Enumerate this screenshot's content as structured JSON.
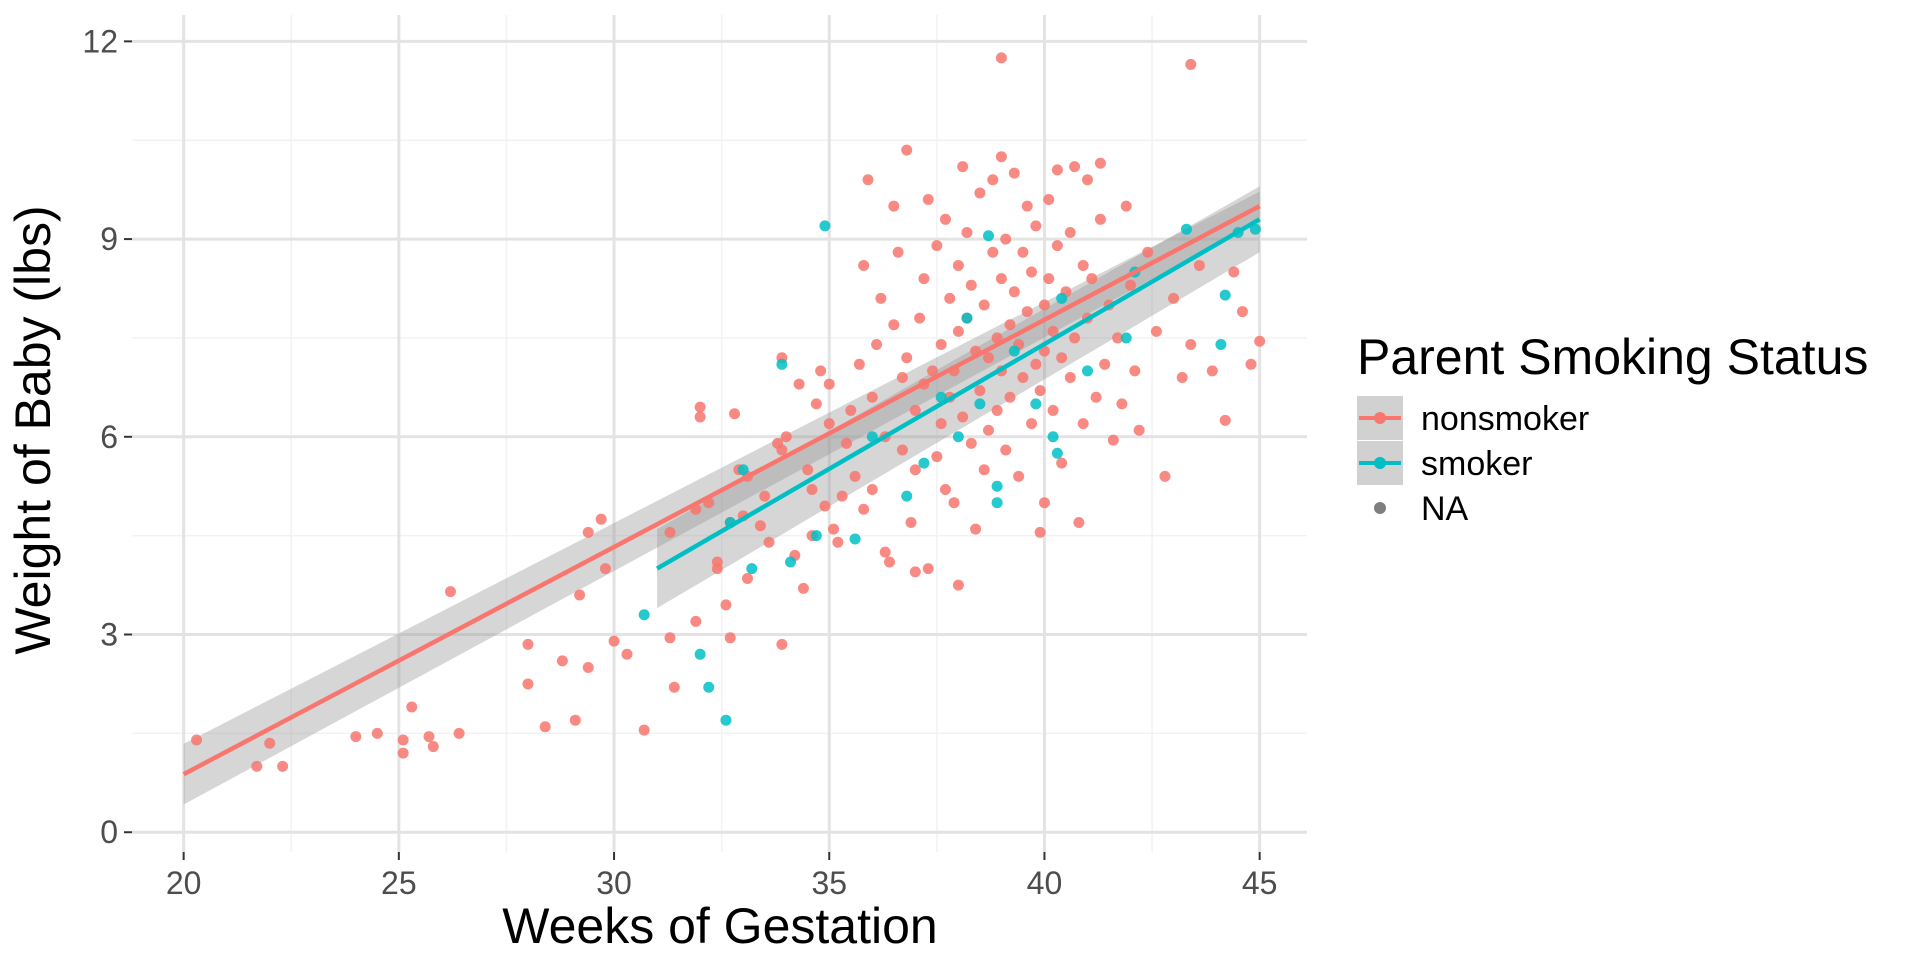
{
  "chart_data": {
    "type": "scatter",
    "xlabel": "Weeks of Gestation",
    "ylabel": "Weight of Baby (lbs)",
    "xlim": [
      18.8,
      46.1
    ],
    "ylim": [
      -0.3,
      12.4
    ],
    "x_ticks": [
      20,
      25,
      30,
      35,
      40,
      45
    ],
    "y_ticks": [
      0,
      3,
      6,
      9,
      12
    ],
    "grid": true,
    "legend": {
      "title": "Parent Smoking Status",
      "position": "right",
      "entries": [
        "nonsmoker",
        "smoker",
        "NA"
      ]
    },
    "colors": {
      "nonsmoker": "#F8766D",
      "smoker": "#00BFC4",
      "NA": "#7F7F7F",
      "ribbon": "#999999"
    },
    "trend_lines": [
      {
        "name": "nonsmoker",
        "x": [
          20,
          45
        ],
        "y": [
          0.88,
          9.5
        ],
        "band_low": [
          0.42,
          9.28
        ],
        "band_high": [
          1.34,
          9.72
        ]
      },
      {
        "name": "smoker",
        "x": [
          31,
          45
        ],
        "y": [
          4.0,
          9.3
        ],
        "band_low": [
          3.4,
          8.8
        ],
        "band_high": [
          4.6,
          9.8
        ]
      }
    ],
    "series": [
      {
        "name": "nonsmoker",
        "points": [
          [
            20.3,
            1.4
          ],
          [
            21.7,
            1.0
          ],
          [
            22.3,
            1.0
          ],
          [
            22.0,
            1.35
          ],
          [
            24.0,
            1.45
          ],
          [
            24.5,
            1.5
          ],
          [
            25.1,
            1.2
          ],
          [
            25.1,
            1.4
          ],
          [
            25.3,
            1.9
          ],
          [
            25.7,
            1.45
          ],
          [
            25.8,
            1.3
          ],
          [
            26.2,
            3.65
          ],
          [
            26.4,
            1.5
          ],
          [
            28.0,
            2.25
          ],
          [
            28.0,
            2.85
          ],
          [
            28.4,
            1.6
          ],
          [
            28.8,
            2.6
          ],
          [
            29.1,
            1.7
          ],
          [
            29.2,
            3.6
          ],
          [
            29.4,
            4.55
          ],
          [
            29.4,
            2.5
          ],
          [
            29.7,
            4.75
          ],
          [
            29.8,
            4.0
          ],
          [
            30.0,
            2.9
          ],
          [
            30.3,
            2.7
          ],
          [
            30.7,
            1.55
          ],
          [
            31.3,
            4.55
          ],
          [
            31.3,
            2.95
          ],
          [
            31.4,
            2.2
          ],
          [
            31.9,
            3.2
          ],
          [
            31.9,
            4.9
          ],
          [
            32.0,
            6.3
          ],
          [
            32.0,
            6.45
          ],
          [
            32.2,
            5.0
          ],
          [
            32.4,
            4.0
          ],
          [
            32.4,
            4.1
          ],
          [
            32.6,
            3.45
          ],
          [
            32.7,
            2.95
          ],
          [
            32.7,
            4.7
          ],
          [
            32.8,
            6.35
          ],
          [
            32.9,
            5.5
          ],
          [
            33.0,
            4.8
          ],
          [
            33.1,
            5.4
          ],
          [
            33.1,
            3.85
          ],
          [
            33.4,
            4.65
          ],
          [
            33.5,
            5.1
          ],
          [
            33.6,
            4.4
          ],
          [
            33.8,
            5.9
          ],
          [
            33.9,
            7.2
          ],
          [
            33.9,
            2.85
          ],
          [
            33.9,
            5.8
          ],
          [
            34.0,
            6.0
          ],
          [
            34.2,
            4.2
          ],
          [
            34.3,
            6.8
          ],
          [
            34.4,
            3.7
          ],
          [
            34.5,
            5.5
          ],
          [
            34.6,
            5.2
          ],
          [
            34.6,
            4.5
          ],
          [
            34.7,
            6.5
          ],
          [
            34.8,
            7.0
          ],
          [
            34.9,
            4.95
          ],
          [
            35.0,
            6.2
          ],
          [
            35.0,
            6.8
          ],
          [
            35.1,
            4.6
          ],
          [
            35.2,
            4.4
          ],
          [
            35.3,
            5.1
          ],
          [
            35.4,
            5.9
          ],
          [
            35.5,
            6.4
          ],
          [
            35.6,
            5.4
          ],
          [
            35.7,
            7.1
          ],
          [
            35.8,
            4.9
          ],
          [
            35.8,
            8.6
          ],
          [
            35.9,
            9.9
          ],
          [
            36.0,
            6.6
          ],
          [
            36.0,
            5.2
          ],
          [
            36.1,
            7.4
          ],
          [
            36.2,
            8.1
          ],
          [
            36.3,
            4.25
          ],
          [
            36.3,
            6.0
          ],
          [
            36.4,
            4.1
          ],
          [
            36.5,
            7.7
          ],
          [
            36.5,
            9.5
          ],
          [
            36.6,
            8.8
          ],
          [
            36.7,
            5.8
          ],
          [
            36.7,
            6.9
          ],
          [
            36.8,
            10.35
          ],
          [
            36.8,
            7.2
          ],
          [
            36.9,
            4.7
          ],
          [
            37.0,
            3.95
          ],
          [
            37.0,
            5.5
          ],
          [
            37.0,
            6.4
          ],
          [
            37.1,
            7.8
          ],
          [
            37.2,
            8.4
          ],
          [
            37.2,
            6.8
          ],
          [
            37.3,
            9.6
          ],
          [
            37.3,
            4.0
          ],
          [
            37.4,
            7.0
          ],
          [
            37.5,
            5.7
          ],
          [
            37.5,
            8.9
          ],
          [
            37.6,
            6.2
          ],
          [
            37.6,
            7.4
          ],
          [
            37.7,
            5.2
          ],
          [
            37.7,
            9.3
          ],
          [
            37.8,
            6.6
          ],
          [
            37.8,
            8.1
          ],
          [
            37.9,
            7.0
          ],
          [
            37.9,
            5.0
          ],
          [
            38.0,
            3.75
          ],
          [
            38.0,
            8.6
          ],
          [
            38.0,
            7.6
          ],
          [
            38.1,
            10.1
          ],
          [
            38.1,
            6.3
          ],
          [
            38.2,
            9.1
          ],
          [
            38.2,
            7.8
          ],
          [
            38.3,
            5.9
          ],
          [
            38.3,
            8.3
          ],
          [
            38.4,
            4.6
          ],
          [
            38.4,
            7.3
          ],
          [
            38.5,
            6.7
          ],
          [
            38.5,
            9.7
          ],
          [
            38.6,
            8.0
          ],
          [
            38.6,
            5.5
          ],
          [
            38.7,
            7.2
          ],
          [
            38.7,
            6.1
          ],
          [
            38.8,
            8.8
          ],
          [
            38.8,
            9.9
          ],
          [
            38.9,
            7.5
          ],
          [
            38.9,
            6.4
          ],
          [
            39.0,
            11.75
          ],
          [
            39.0,
            10.25
          ],
          [
            39.0,
            8.4
          ],
          [
            39.0,
            7.0
          ],
          [
            39.1,
            5.8
          ],
          [
            39.1,
            9.0
          ],
          [
            39.2,
            7.7
          ],
          [
            39.2,
            6.6
          ],
          [
            39.3,
            8.2
          ],
          [
            39.3,
            10.0
          ],
          [
            39.4,
            7.4
          ],
          [
            39.4,
            5.4
          ],
          [
            39.5,
            8.8
          ],
          [
            39.5,
            6.9
          ],
          [
            39.6,
            9.5
          ],
          [
            39.6,
            7.9
          ],
          [
            39.7,
            6.2
          ],
          [
            39.7,
            8.5
          ],
          [
            39.8,
            7.1
          ],
          [
            39.8,
            9.2
          ],
          [
            39.9,
            4.55
          ],
          [
            39.9,
            6.7
          ],
          [
            40.0,
            8.0
          ],
          [
            40.0,
            7.3
          ],
          [
            40.0,
            5.0
          ],
          [
            40.1,
            9.6
          ],
          [
            40.1,
            8.4
          ],
          [
            40.2,
            7.6
          ],
          [
            40.2,
            6.4
          ],
          [
            40.3,
            10.05
          ],
          [
            40.3,
            8.9
          ],
          [
            40.4,
            7.2
          ],
          [
            40.4,
            5.6
          ],
          [
            40.5,
            8.2
          ],
          [
            40.6,
            9.1
          ],
          [
            40.6,
            6.9
          ],
          [
            40.7,
            10.1
          ],
          [
            40.7,
            7.5
          ],
          [
            40.8,
            4.7
          ],
          [
            40.9,
            8.6
          ],
          [
            40.9,
            6.2
          ],
          [
            41.0,
            9.9
          ],
          [
            41.0,
            7.8
          ],
          [
            41.1,
            8.4
          ],
          [
            41.2,
            6.6
          ],
          [
            41.3,
            10.15
          ],
          [
            41.3,
            9.3
          ],
          [
            41.4,
            7.1
          ],
          [
            41.5,
            8.0
          ],
          [
            41.6,
            5.95
          ],
          [
            41.7,
            7.5
          ],
          [
            41.8,
            6.5
          ],
          [
            41.9,
            9.5
          ],
          [
            42.0,
            8.3
          ],
          [
            42.1,
            7.0
          ],
          [
            42.2,
            6.1
          ],
          [
            42.4,
            8.8
          ],
          [
            42.6,
            7.6
          ],
          [
            42.8,
            5.4
          ],
          [
            43.0,
            8.1
          ],
          [
            43.2,
            6.9
          ],
          [
            43.4,
            11.65
          ],
          [
            43.4,
            7.4
          ],
          [
            43.6,
            8.6
          ],
          [
            43.9,
            7.0
          ],
          [
            44.2,
            6.25
          ],
          [
            44.4,
            8.5
          ],
          [
            44.6,
            7.9
          ],
          [
            44.8,
            7.1
          ],
          [
            45.0,
            7.45
          ]
        ]
      },
      {
        "name": "smoker",
        "points": [
          [
            30.7,
            3.3
          ],
          [
            32.0,
            2.7
          ],
          [
            32.2,
            2.2
          ],
          [
            32.6,
            1.7
          ],
          [
            32.7,
            4.7
          ],
          [
            33.0,
            5.5
          ],
          [
            33.2,
            4.0
          ],
          [
            33.9,
            7.1
          ],
          [
            34.1,
            4.1
          ],
          [
            34.7,
            4.5
          ],
          [
            34.9,
            9.2
          ],
          [
            35.6,
            4.45
          ],
          [
            36.0,
            6.0
          ],
          [
            36.8,
            5.1
          ],
          [
            37.2,
            5.6
          ],
          [
            37.6,
            6.6
          ],
          [
            38.0,
            6.0
          ],
          [
            38.2,
            7.8
          ],
          [
            38.5,
            6.5
          ],
          [
            38.7,
            9.05
          ],
          [
            38.9,
            5.0
          ],
          [
            38.9,
            5.25
          ],
          [
            39.3,
            7.3
          ],
          [
            39.8,
            6.5
          ],
          [
            40.2,
            6.0
          ],
          [
            40.3,
            5.75
          ],
          [
            40.4,
            8.1
          ],
          [
            41.0,
            7.0
          ],
          [
            41.9,
            7.5
          ],
          [
            42.1,
            8.5
          ],
          [
            43.3,
            9.15
          ],
          [
            44.1,
            7.4
          ],
          [
            44.2,
            8.15
          ],
          [
            44.5,
            9.1
          ],
          [
            44.9,
            9.15
          ]
        ]
      }
    ]
  }
}
